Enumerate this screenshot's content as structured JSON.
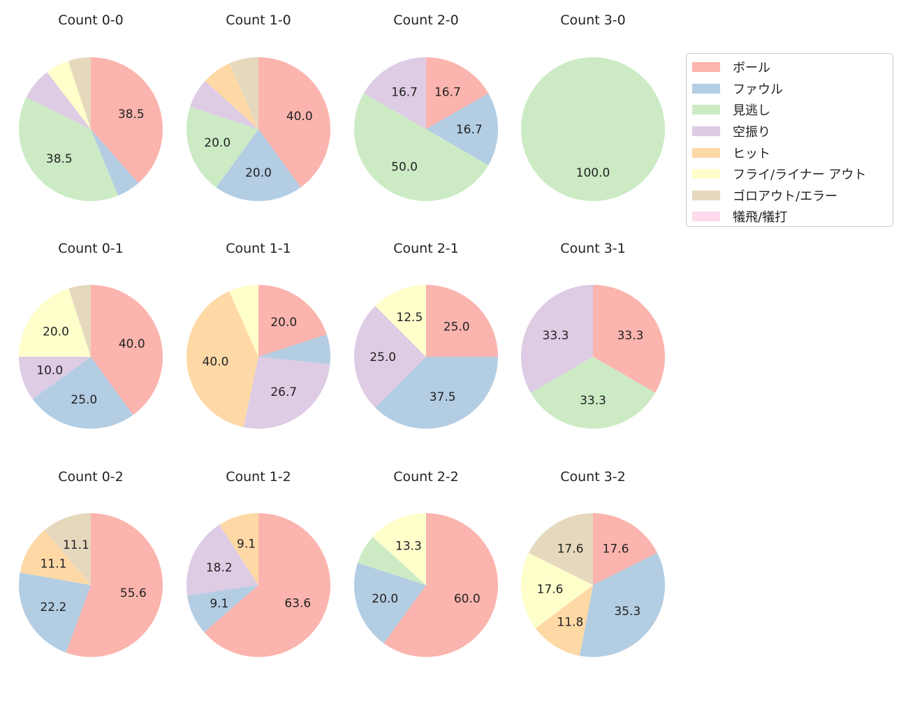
{
  "chart_data": {
    "type": "pie",
    "categories": [
      "ボール",
      "ファウル",
      "見逃し",
      "空振り",
      "ヒット",
      "フライ/ライナー アウト",
      "ゴロアウト/エラー",
      "犠飛/犠打"
    ],
    "colors": [
      "#fbb4ae",
      "#b3cde3",
      "#ccebc5",
      "#decbe4",
      "#fed9a6",
      "#ffffcc",
      "#e5d8bd",
      "#fddaec"
    ],
    "legend_position": "right",
    "charts": [
      {
        "title": "Count 0-0",
        "values": [
          38.5,
          5.3,
          38.5,
          7.3,
          0,
          5.3,
          5.1,
          0
        ]
      },
      {
        "title": "Count 1-0",
        "values": [
          40.0,
          20.0,
          20.0,
          6.7,
          6.7,
          0,
          6.6,
          0
        ]
      },
      {
        "title": "Count 2-0",
        "values": [
          16.7,
          16.7,
          50.0,
          16.7,
          0,
          0,
          0,
          0
        ]
      },
      {
        "title": "Count 3-0",
        "values": [
          0,
          0,
          100.0,
          0,
          0,
          0,
          0,
          0
        ]
      },
      {
        "title": "Count 0-1",
        "values": [
          40.0,
          25.0,
          0,
          10.0,
          0,
          20.0,
          5.0,
          0
        ]
      },
      {
        "title": "Count 1-1",
        "values": [
          20.0,
          6.7,
          0,
          26.7,
          40.0,
          6.7,
          0,
          0
        ]
      },
      {
        "title": "Count 2-1",
        "values": [
          25.0,
          37.5,
          0,
          25.0,
          0,
          12.5,
          0,
          0
        ]
      },
      {
        "title": "Count 3-1",
        "values": [
          33.3,
          0,
          33.3,
          33.3,
          0,
          0,
          0,
          0
        ]
      },
      {
        "title": "Count 0-2",
        "values": [
          55.6,
          22.2,
          0,
          0,
          11.1,
          0,
          11.1,
          0
        ]
      },
      {
        "title": "Count 1-2",
        "values": [
          63.6,
          9.1,
          0,
          18.2,
          9.1,
          0,
          0,
          0
        ]
      },
      {
        "title": "Count 2-2",
        "values": [
          60.0,
          20.0,
          6.7,
          0,
          0,
          13.3,
          0,
          0
        ]
      },
      {
        "title": "Count 3-2",
        "values": [
          17.6,
          35.3,
          0,
          0,
          11.8,
          17.6,
          17.6,
          0
        ]
      }
    ]
  }
}
